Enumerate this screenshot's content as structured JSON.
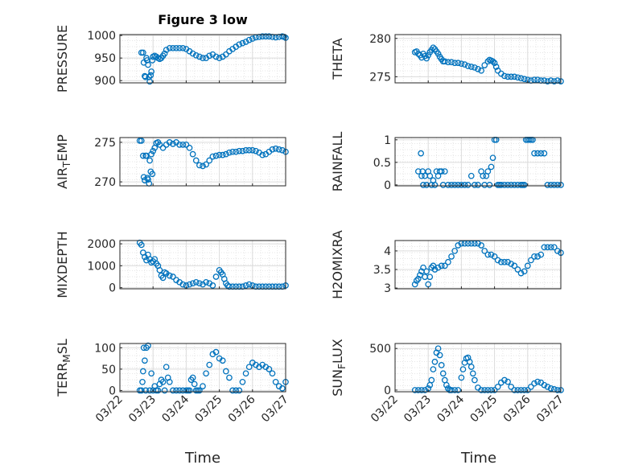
{
  "figure": {
    "title": "Figure 3 low",
    "marker_color": "#0072BD",
    "axis_color": "#262626",
    "grid_color": "#dcdcdc"
  },
  "chart_data": [
    {
      "type": "scatter",
      "ylabel": "PRESSURE",
      "ylim": [
        895,
        1002
      ],
      "yticks": [
        900,
        950,
        1000
      ],
      "xlim": [
        0,
        5
      ],
      "x": [
        0.65,
        0.7,
        0.72,
        0.75,
        0.77,
        0.8,
        0.82,
        0.85,
        0.88,
        0.9,
        0.93,
        0.95,
        0.98,
        1.0,
        1.05,
        1.1,
        1.15,
        1.2,
        1.25,
        1.3,
        1.35,
        1.4,
        1.5,
        1.6,
        1.7,
        1.8,
        1.9,
        2.0,
        2.1,
        2.2,
        2.3,
        2.4,
        2.5,
        2.6,
        2.7,
        2.8,
        2.9,
        3.0,
        3.1,
        3.2,
        3.3,
        3.4,
        3.5,
        3.6,
        3.7,
        3.8,
        3.9,
        4.0,
        4.1,
        4.2,
        4.3,
        4.4,
        4.5,
        4.6,
        4.7,
        4.8,
        4.9,
        4.95,
        5.0
      ],
      "y": [
        962,
        962,
        940,
        910,
        908,
        950,
        945,
        935,
        908,
        898,
        912,
        920,
        945,
        953,
        955,
        953,
        950,
        948,
        950,
        955,
        960,
        968,
        972,
        972,
        972,
        972,
        972,
        970,
        965,
        960,
        956,
        953,
        950,
        950,
        955,
        958,
        953,
        950,
        953,
        958,
        965,
        970,
        975,
        980,
        983,
        986,
        990,
        993,
        996,
        997,
        998,
        998,
        998,
        997,
        996,
        997,
        998,
        997,
        995
      ]
    },
    {
      "type": "scatter",
      "ylabel": "THETA",
      "ylim": [
        274.2,
        280.5
      ],
      "yticks": [
        275,
        280
      ],
      "xlim": [
        0,
        5
      ],
      "x": [
        0.6,
        0.65,
        0.7,
        0.75,
        0.8,
        0.85,
        0.9,
        0.95,
        1.0,
        1.05,
        1.1,
        1.15,
        1.2,
        1.25,
        1.3,
        1.35,
        1.4,
        1.45,
        1.5,
        1.6,
        1.7,
        1.8,
        1.9,
        2.0,
        2.1,
        2.2,
        2.3,
        2.4,
        2.5,
        2.6,
        2.7,
        2.8,
        2.85,
        2.9,
        2.95,
        3.0,
        3.05,
        3.1,
        3.2,
        3.3,
        3.4,
        3.5,
        3.6,
        3.7,
        3.8,
        3.9,
        4.0,
        4.1,
        4.2,
        4.3,
        4.4,
        4.5,
        4.6,
        4.7,
        4.8,
        4.9,
        5.0
      ],
      "y": [
        278.2,
        278.3,
        278.0,
        277.8,
        277.5,
        278.0,
        277.7,
        277.4,
        277.8,
        278.2,
        278.5,
        278.8,
        278.6,
        278.3,
        278.0,
        277.6,
        277.3,
        277.0,
        277.0,
        276.9,
        276.9,
        276.8,
        276.8,
        276.7,
        276.6,
        276.4,
        276.3,
        276.2,
        276.0,
        275.8,
        276.5,
        277.0,
        277.2,
        277.1,
        277.0,
        276.8,
        276.3,
        275.8,
        275.4,
        275.1,
        275.0,
        275.0,
        275.0,
        274.9,
        274.8,
        274.7,
        274.6,
        274.5,
        274.6,
        274.6,
        274.5,
        274.5,
        274.4,
        274.5,
        274.4,
        274.5,
        274.4
      ]
    },
    {
      "type": "scatter",
      "ylabel": "AIR_T EMP",
      "ylim": [
        269.5,
        275.6
      ],
      "yticks": [
        270,
        275
      ],
      "xlim": [
        0,
        5
      ],
      "x": [
        0.6,
        0.65,
        0.7,
        0.72,
        0.75,
        0.78,
        0.8,
        0.83,
        0.85,
        0.88,
        0.9,
        0.93,
        0.95,
        0.98,
        1.0,
        1.05,
        1.1,
        1.15,
        1.2,
        1.3,
        1.4,
        1.5,
        1.6,
        1.7,
        1.8,
        1.9,
        2.0,
        2.1,
        2.2,
        2.3,
        2.4,
        2.5,
        2.6,
        2.7,
        2.8,
        2.9,
        3.0,
        3.1,
        3.2,
        3.3,
        3.4,
        3.5,
        3.6,
        3.7,
        3.8,
        3.9,
        4.0,
        4.1,
        4.2,
        4.3,
        4.4,
        4.5,
        4.6,
        4.7,
        4.8,
        4.9,
        5.0
      ],
      "y": [
        275.2,
        275.2,
        273.3,
        270.6,
        270.2,
        273.3,
        273.3,
        270.5,
        270.3,
        269.8,
        272.7,
        271.3,
        273.5,
        271.0,
        273.9,
        274.3,
        274.9,
        275.0,
        274.7,
        274.3,
        274.7,
        275.0,
        274.8,
        275.0,
        274.7,
        274.7,
        274.7,
        274.3,
        273.5,
        272.7,
        272.1,
        272.0,
        272.2,
        272.7,
        273.2,
        273.3,
        273.4,
        273.4,
        273.5,
        273.7,
        273.8,
        273.8,
        273.9,
        273.9,
        274.0,
        274.0,
        274.0,
        273.9,
        273.7,
        273.4,
        273.5,
        273.8,
        274.1,
        274.2,
        274.1,
        274.0,
        273.8
      ]
    },
    {
      "type": "scatter",
      "ylabel": "RAINFALL",
      "ylim": [
        -0.02,
        1.05
      ],
      "yticks": [
        0,
        0.5,
        1
      ],
      "xlim": [
        0,
        5
      ],
      "x": [
        0.7,
        0.78,
        0.8,
        0.83,
        0.85,
        0.9,
        0.95,
        1.0,
        1.05,
        1.1,
        1.15,
        1.2,
        1.25,
        1.3,
        1.35,
        1.4,
        1.45,
        1.5,
        1.6,
        1.7,
        1.8,
        1.9,
        2.0,
        2.1,
        2.2,
        2.3,
        2.4,
        2.5,
        2.6,
        2.65,
        2.7,
        2.75,
        2.8,
        2.85,
        2.9,
        2.95,
        3.0,
        3.05,
        3.1,
        3.15,
        3.2,
        3.3,
        3.4,
        3.5,
        3.6,
        3.7,
        3.8,
        3.85,
        3.9,
        3.95,
        4.0,
        4.05,
        4.1,
        4.15,
        4.2,
        4.3,
        4.4,
        4.5,
        4.6,
        4.7,
        4.8,
        4.9,
        5.0
      ],
      "y": [
        0.3,
        0.7,
        0.2,
        0.3,
        0,
        0.2,
        0,
        0.3,
        0.2,
        0,
        0.1,
        0,
        0.3,
        0.2,
        0.3,
        0.3,
        0,
        0.3,
        0,
        0,
        0,
        0,
        0,
        0,
        0,
        0.2,
        0,
        0,
        0.3,
        0.2,
        0,
        0.2,
        0.3,
        0,
        0.4,
        0.6,
        1.0,
        1.0,
        0,
        0,
        0,
        0,
        0,
        0,
        0,
        0,
        0,
        0,
        0,
        1.0,
        1.0,
        1.0,
        1.0,
        1.0,
        0.7,
        0.7,
        0.7,
        0.7,
        0,
        0,
        0,
        0,
        0
      ]
    },
    {
      "type": "scatter",
      "ylabel": "MIXDEPTH",
      "ylim": [
        -50,
        2150
      ],
      "yticks": [
        0,
        1000,
        2000
      ],
      "xlim": [
        0,
        5
      ],
      "x": [
        0.6,
        0.65,
        0.7,
        0.75,
        0.8,
        0.85,
        0.9,
        0.95,
        1.0,
        1.05,
        1.1,
        1.15,
        1.2,
        1.25,
        1.3,
        1.35,
        1.4,
        1.5,
        1.6,
        1.7,
        1.8,
        1.9,
        2.0,
        2.1,
        2.2,
        2.3,
        2.4,
        2.5,
        2.6,
        2.7,
        2.8,
        2.9,
        3.0,
        3.05,
        3.1,
        3.15,
        3.2,
        3.25,
        3.3,
        3.4,
        3.5,
        3.6,
        3.7,
        3.8,
        3.9,
        4.0,
        4.1,
        4.2,
        4.3,
        4.4,
        4.5,
        4.6,
        4.7,
        4.8,
        4.9,
        5.0
      ],
      "y": [
        2050,
        1950,
        1600,
        1400,
        1250,
        1500,
        1300,
        1150,
        1200,
        1300,
        1100,
        1000,
        800,
        550,
        450,
        700,
        650,
        550,
        500,
        350,
        250,
        150,
        100,
        150,
        200,
        250,
        200,
        150,
        250,
        200,
        100,
        500,
        800,
        700,
        600,
        400,
        200,
        100,
        50,
        50,
        50,
        50,
        50,
        100,
        150,
        100,
        50,
        50,
        50,
        50,
        50,
        50,
        50,
        50,
        50,
        100
      ]
    },
    {
      "type": "scatter",
      "ylabel": "H2OMIXRA",
      "ylim": [
        2.98,
        4.28
      ],
      "yticks": [
        3,
        3.5,
        4
      ],
      "xlim": [
        0,
        5
      ],
      "x": [
        0.6,
        0.65,
        0.7,
        0.75,
        0.8,
        0.85,
        0.9,
        0.95,
        1.0,
        1.05,
        1.1,
        1.15,
        1.2,
        1.3,
        1.4,
        1.5,
        1.6,
        1.7,
        1.8,
        1.9,
        2.0,
        2.1,
        2.2,
        2.3,
        2.4,
        2.5,
        2.6,
        2.7,
        2.8,
        2.9,
        3.0,
        3.1,
        3.2,
        3.3,
        3.4,
        3.5,
        3.6,
        3.7,
        3.8,
        3.9,
        4.0,
        4.1,
        4.2,
        4.3,
        4.4,
        4.5,
        4.6,
        4.7,
        4.8,
        4.9,
        5.0
      ],
      "y": [
        3.1,
        3.2,
        3.25,
        3.35,
        3.45,
        3.55,
        3.3,
        3.45,
        3.1,
        3.3,
        3.55,
        3.6,
        3.5,
        3.55,
        3.6,
        3.6,
        3.7,
        3.85,
        4.0,
        4.15,
        4.2,
        4.2,
        4.2,
        4.2,
        4.2,
        4.2,
        4.15,
        4.0,
        3.9,
        3.9,
        3.85,
        3.75,
        3.7,
        3.7,
        3.7,
        3.65,
        3.6,
        3.5,
        3.4,
        3.45,
        3.6,
        3.75,
        3.85,
        3.85,
        3.9,
        4.1,
        4.1,
        4.1,
        4.1,
        4.0,
        3.95
      ]
    },
    {
      "type": "scatter",
      "ylabel": "TERR_M SL",
      "ylim": [
        -3,
        110
      ],
      "yticks": [
        0,
        50,
        100
      ],
      "xlim": [
        0,
        5
      ],
      "x": [
        0.6,
        0.65,
        0.68,
        0.7,
        0.72,
        0.75,
        0.78,
        0.8,
        0.85,
        0.9,
        0.95,
        1.0,
        1.05,
        1.1,
        1.15,
        1.2,
        1.25,
        1.3,
        1.35,
        1.4,
        1.45,
        1.5,
        1.6,
        1.7,
        1.8,
        1.9,
        2.0,
        2.05,
        2.1,
        2.15,
        2.2,
        2.25,
        2.3,
        2.35,
        2.4,
        2.5,
        2.6,
        2.7,
        2.8,
        2.9,
        3.0,
        3.1,
        3.2,
        3.3,
        3.4,
        3.5,
        3.6,
        3.7,
        3.8,
        3.9,
        4.0,
        4.1,
        4.2,
        4.3,
        4.4,
        4.5,
        4.6,
        4.7,
        4.8,
        4.9,
        5.0
      ],
      "y": [
        0,
        0,
        20,
        45,
        100,
        70,
        0,
        100,
        105,
        0,
        40,
        0,
        10,
        0,
        0,
        15,
        25,
        20,
        0,
        55,
        30,
        20,
        0,
        0,
        0,
        0,
        0,
        0,
        0,
        25,
        30,
        15,
        0,
        0,
        0,
        10,
        40,
        60,
        85,
        90,
        75,
        70,
        45,
        30,
        0,
        0,
        0,
        20,
        40,
        55,
        65,
        60,
        55,
        60,
        55,
        50,
        40,
        20,
        10,
        5,
        20
      ]
    },
    {
      "type": "scatter",
      "ylabel": "SUN_F LUX",
      "ylim": [
        -20,
        560
      ],
      "yticks": [
        0,
        500
      ],
      "xlim": [
        0,
        5
      ],
      "x": [
        0.6,
        0.7,
        0.8,
        0.9,
        1.0,
        1.05,
        1.1,
        1.15,
        1.2,
        1.25,
        1.3,
        1.35,
        1.4,
        1.45,
        1.5,
        1.55,
        1.6,
        1.65,
        1.7,
        1.8,
        1.9,
        2.0,
        2.05,
        2.1,
        2.15,
        2.2,
        2.25,
        2.3,
        2.35,
        2.4,
        2.5,
        2.6,
        2.7,
        2.8,
        2.9,
        3.0,
        3.1,
        3.2,
        3.3,
        3.4,
        3.5,
        3.6,
        3.7,
        3.8,
        3.9,
        4.0,
        4.1,
        4.2,
        4.3,
        4.4,
        4.5,
        4.6,
        4.7,
        4.8,
        4.9,
        5.0
      ],
      "y": [
        0,
        0,
        0,
        0,
        20,
        60,
        120,
        250,
        340,
        450,
        500,
        420,
        300,
        200,
        120,
        60,
        20,
        0,
        0,
        0,
        0,
        150,
        250,
        330,
        380,
        390,
        340,
        280,
        200,
        120,
        30,
        0,
        0,
        0,
        0,
        0,
        40,
        90,
        120,
        100,
        40,
        0,
        0,
        0,
        0,
        0,
        40,
        80,
        100,
        90,
        60,
        40,
        20,
        10,
        0,
        0
      ]
    }
  ],
  "xaxis": {
    "ticks": [
      0,
      1,
      2,
      3,
      4,
      5
    ],
    "tick_labels": [
      "03/22",
      "03/23",
      "03/24",
      "03/25",
      "03/26",
      "03/27"
    ],
    "label": "Time"
  }
}
